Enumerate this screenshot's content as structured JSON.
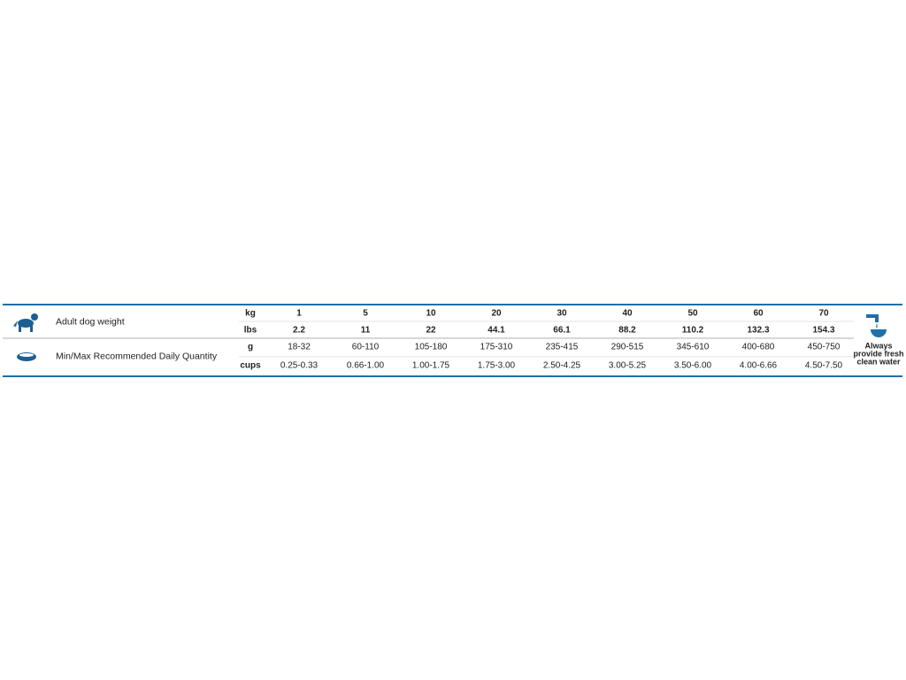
{
  "feeding_table": {
    "sections": [
      {
        "label": "Adult dog weight",
        "rows": [
          {
            "unit": "kg",
            "cells": [
              "1",
              "5",
              "10",
              "20",
              "30",
              "40",
              "50",
              "60",
              "70"
            ]
          },
          {
            "unit": "lbs",
            "cells": [
              "2.2",
              "11",
              "22",
              "44.1",
              "66.1",
              "88.2",
              "110.2",
              "132.3",
              "154.3"
            ]
          }
        ]
      },
      {
        "label": "Min/Max Recommended Daily Quantity",
        "rows": [
          {
            "unit": "g",
            "cells": [
              "18-32",
              "60-110",
              "105-180",
              "175-310",
              "235-415",
              "290-515",
              "345-610",
              "400-680",
              "450-750"
            ]
          },
          {
            "unit": "cups",
            "cells": [
              "0.25-0.33",
              "0.66-1.00",
              "1.00-1.75",
              "1.75-3.00",
              "2.50-4.25",
              "3.00-5.25",
              "3.50-6.00",
              "4.00-6.66",
              "4.50-7.50"
            ]
          }
        ]
      }
    ],
    "water_note": [
      "Always",
      "provide fresh",
      "clean water"
    ]
  }
}
